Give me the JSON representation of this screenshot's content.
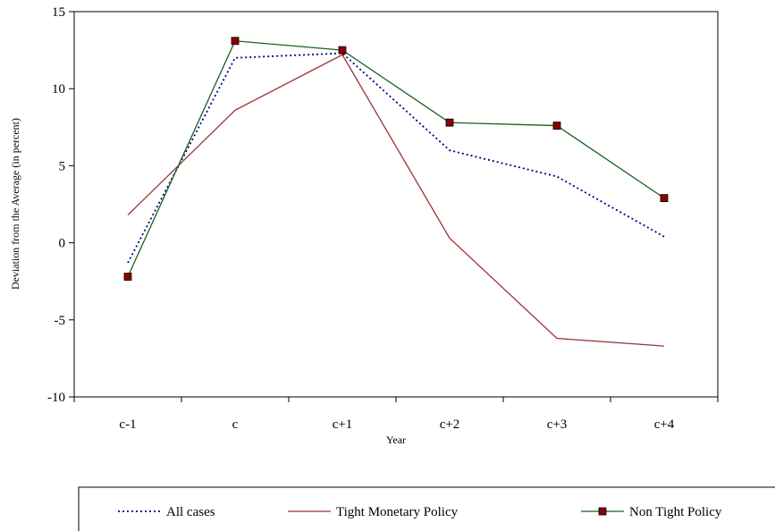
{
  "chart_data": {
    "type": "line",
    "title": "",
    "xlabel": "Year",
    "ylabel": "Deviation from the Average (in percent)",
    "ylim": [
      -10,
      15
    ],
    "yticks": [
      -10,
      -5,
      0,
      5,
      10,
      15
    ],
    "grid": false,
    "legend_position": "bottom",
    "categories": [
      "c-1",
      "c",
      "c+1",
      "c+2",
      "c+3",
      "c+4"
    ],
    "series": [
      {
        "name": "All cases",
        "values": [
          -1.3,
          12.0,
          12.3,
          6.0,
          4.3,
          0.4
        ],
        "color": "#000080",
        "style": "dotted",
        "marker": "none"
      },
      {
        "name": "Tight Monetary Policy",
        "values": [
          1.8,
          8.6,
          12.2,
          0.3,
          -6.2,
          -6.7
        ],
        "color": "#993333",
        "style": "solid",
        "marker": "none"
      },
      {
        "name": "Non Tight Policy",
        "values": [
          -2.2,
          13.1,
          12.5,
          7.8,
          7.6,
          2.9
        ],
        "color": "#1b5e20",
        "style": "solid",
        "marker": "square",
        "marker_color": "#8b0000"
      }
    ]
  }
}
